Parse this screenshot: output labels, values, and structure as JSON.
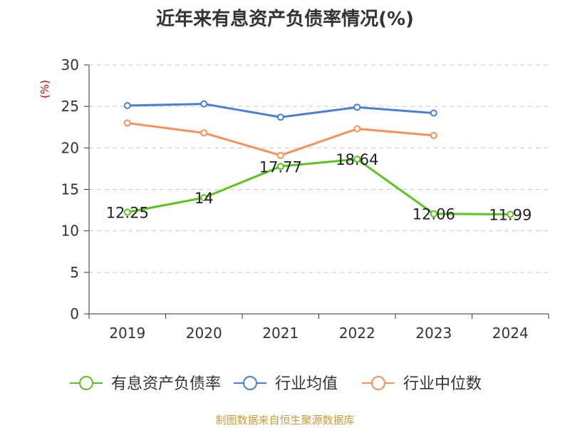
{
  "chart_data": {
    "type": "line",
    "title": "近年来有息资产负债率情况(%)",
    "ylabel": "(%)",
    "xlabel": "",
    "categories": [
      "2019",
      "2020",
      "2021",
      "2022",
      "2023",
      "2024"
    ],
    "ylim": [
      0,
      30
    ],
    "yticks": [
      0,
      5,
      10,
      15,
      20,
      25,
      30
    ],
    "grid": true,
    "legend_position": "bottom",
    "series": [
      {
        "name": "有息资产负债率",
        "color": "#5cc21f",
        "values": [
          12.25,
          14,
          17.77,
          18.64,
          12.06,
          11.99
        ],
        "labels": [
          "12.25",
          "14",
          "17.77",
          "18.64",
          "12.06",
          "11.99"
        ]
      },
      {
        "name": "行业均值",
        "color": "#4a7fd8",
        "values": [
          25.1,
          25.3,
          23.7,
          24.9,
          24.2,
          null
        ]
      },
      {
        "name": "行业中位数",
        "color": "#f8905c",
        "values": [
          23.0,
          21.8,
          19.1,
          22.3,
          21.5,
          null
        ]
      }
    ]
  },
  "source": {
    "text": "制图数据来自恒生聚源数据库",
    "color": "#c89b3c"
  },
  "axis_label_color": "#cc0000"
}
